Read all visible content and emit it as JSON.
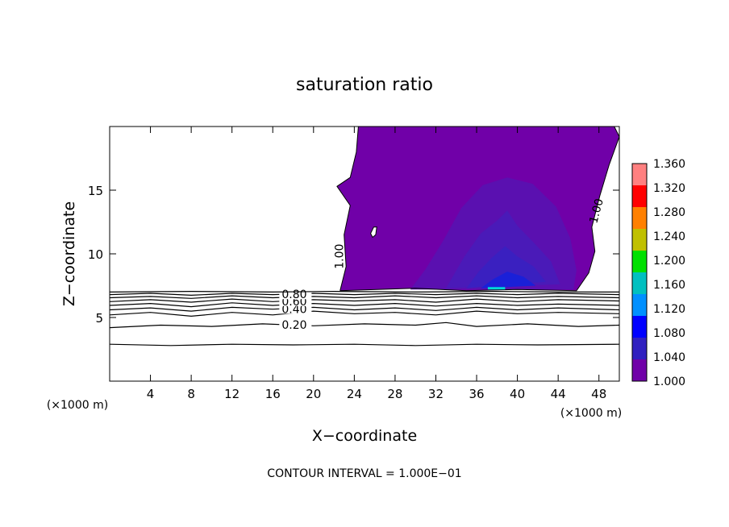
{
  "chart_data": {
    "type": "contour",
    "title": "saturation ratio",
    "xlabel": "X−coordinate",
    "ylabel": "Z−coordinate",
    "x_unit_left": "(×1000 m)",
    "x_unit_right": "(×1000 m)",
    "footer": "CONTOUR INTERVAL = 1.000E−01",
    "xlim": [
      0,
      50
    ],
    "ylim": [
      0,
      20
    ],
    "x_ticks": [
      {
        "value": 4,
        "label": "4"
      },
      {
        "value": 8,
        "label": "8"
      },
      {
        "value": 12,
        "label": "12"
      },
      {
        "value": 16,
        "label": "16"
      },
      {
        "value": 20,
        "label": "20"
      },
      {
        "value": 24,
        "label": "24"
      },
      {
        "value": 28,
        "label": "28"
      },
      {
        "value": 32,
        "label": "32"
      },
      {
        "value": 36,
        "label": "36"
      },
      {
        "value": 40,
        "label": "40"
      },
      {
        "value": 44,
        "label": "44"
      },
      {
        "value": 48,
        "label": "48"
      }
    ],
    "y_ticks": [
      {
        "value": 5,
        "label": "5"
      },
      {
        "value": 10,
        "label": "10"
      },
      {
        "value": 15,
        "label": "15"
      }
    ],
    "colorbar": {
      "min": 1.0,
      "max": 1.36,
      "ticks": [
        "1.360",
        "1.320",
        "1.280",
        "1.240",
        "1.200",
        "1.160",
        "1.120",
        "1.080",
        "1.040",
        "1.000"
      ],
      "colors": [
        "#ff8080",
        "#ff0000",
        "#ff8000",
        "#c0c000",
        "#00e000",
        "#00c0c0",
        "#0090ff",
        "#0000ff",
        "#3020c0",
        "#7000a8"
      ]
    },
    "contour_lines": [
      {
        "level": 0.1,
        "label": "",
        "points": [
          [
            0,
            2.9
          ],
          [
            6,
            2.8
          ],
          [
            12,
            2.9
          ],
          [
            18,
            2.85
          ],
          [
            24,
            2.9
          ],
          [
            30,
            2.8
          ],
          [
            36,
            2.9
          ],
          [
            42,
            2.85
          ],
          [
            50,
            2.9
          ]
        ]
      },
      {
        "level": 0.2,
        "label": "0.20",
        "points": [
          [
            0,
            4.2
          ],
          [
            5,
            4.4
          ],
          [
            10,
            4.3
          ],
          [
            15,
            4.5
          ],
          [
            20,
            4.35
          ],
          [
            25,
            4.5
          ],
          [
            30,
            4.4
          ],
          [
            33,
            4.6
          ],
          [
            36,
            4.3
          ],
          [
            41,
            4.5
          ],
          [
            46,
            4.3
          ],
          [
            50,
            4.4
          ]
        ]
      },
      {
        "level": 0.3,
        "label": "",
        "points": [
          [
            0,
            5.2
          ],
          [
            4,
            5.4
          ],
          [
            8,
            5.1
          ],
          [
            12,
            5.4
          ],
          [
            16,
            5.2
          ],
          [
            20,
            5.5
          ],
          [
            24,
            5.3
          ],
          [
            28,
            5.4
          ],
          [
            32,
            5.2
          ],
          [
            36,
            5.5
          ],
          [
            40,
            5.3
          ],
          [
            44,
            5.4
          ],
          [
            50,
            5.3
          ]
        ]
      },
      {
        "level": 0.4,
        "label": "0.40",
        "points": [
          [
            0,
            5.6
          ],
          [
            4,
            5.75
          ],
          [
            8,
            5.5
          ],
          [
            12,
            5.8
          ],
          [
            16,
            5.65
          ],
          [
            20,
            5.8
          ],
          [
            24,
            5.6
          ],
          [
            28,
            5.75
          ],
          [
            32,
            5.55
          ],
          [
            36,
            5.8
          ],
          [
            40,
            5.6
          ],
          [
            44,
            5.75
          ],
          [
            50,
            5.6
          ]
        ]
      },
      {
        "level": 0.5,
        "label": "",
        "points": [
          [
            0,
            5.95
          ],
          [
            4,
            6.1
          ],
          [
            8,
            5.85
          ],
          [
            12,
            6.15
          ],
          [
            16,
            5.95
          ],
          [
            20,
            6.1
          ],
          [
            24,
            5.95
          ],
          [
            28,
            6.1
          ],
          [
            32,
            5.9
          ],
          [
            36,
            6.1
          ],
          [
            40,
            5.95
          ],
          [
            44,
            6.05
          ],
          [
            50,
            5.95
          ]
        ]
      },
      {
        "level": 0.6,
        "label": "0.60",
        "points": [
          [
            0,
            6.25
          ],
          [
            4,
            6.4
          ],
          [
            8,
            6.2
          ],
          [
            12,
            6.45
          ],
          [
            16,
            6.25
          ],
          [
            20,
            6.4
          ],
          [
            24,
            6.3
          ],
          [
            28,
            6.4
          ],
          [
            32,
            6.2
          ],
          [
            36,
            6.45
          ],
          [
            40,
            6.25
          ],
          [
            44,
            6.4
          ],
          [
            50,
            6.3
          ]
        ]
      },
      {
        "level": 0.7,
        "label": "",
        "points": [
          [
            0,
            6.55
          ],
          [
            4,
            6.65
          ],
          [
            8,
            6.5
          ],
          [
            12,
            6.7
          ],
          [
            16,
            6.55
          ],
          [
            20,
            6.65
          ],
          [
            24,
            6.55
          ],
          [
            28,
            6.7
          ],
          [
            32,
            6.55
          ],
          [
            36,
            6.7
          ],
          [
            40,
            6.55
          ],
          [
            44,
            6.65
          ],
          [
            50,
            6.55
          ]
        ]
      },
      {
        "level": 0.8,
        "label": "0.80",
        "points": [
          [
            0,
            6.8
          ],
          [
            4,
            6.9
          ],
          [
            8,
            6.75
          ],
          [
            12,
            6.9
          ],
          [
            16,
            6.8
          ],
          [
            20,
            6.9
          ],
          [
            24,
            6.8
          ],
          [
            28,
            6.9
          ],
          [
            32,
            6.8
          ],
          [
            36,
            6.9
          ],
          [
            40,
            6.8
          ],
          [
            44,
            6.9
          ],
          [
            50,
            6.8
          ]
        ]
      },
      {
        "level": 0.9,
        "label": "",
        "points": [
          [
            0,
            7.0
          ],
          [
            8,
            7.05
          ],
          [
            16,
            7.0
          ],
          [
            22,
            7.05
          ],
          [
            30,
            7.0
          ],
          [
            38,
            7.05
          ],
          [
            44,
            7.0
          ],
          [
            50,
            7.0
          ]
        ]
      }
    ],
    "filled_regions": [
      {
        "level": 1.0,
        "color": "#7000a8",
        "points": [
          [
            22.6,
            7.1
          ],
          [
            23.2,
            9.0
          ],
          [
            23.0,
            11.5
          ],
          [
            23.6,
            13.8
          ],
          [
            22.3,
            15.3
          ],
          [
            23.6,
            16.0
          ],
          [
            24.2,
            18.0
          ],
          [
            24.4,
            20
          ],
          [
            49.5,
            20
          ],
          [
            50,
            19.2
          ],
          [
            49.0,
            17.0
          ],
          [
            48.1,
            14.6
          ],
          [
            47.3,
            12.1
          ],
          [
            47.6,
            10.2
          ],
          [
            47.0,
            8.5
          ],
          [
            45.8,
            7.1
          ],
          [
            40,
            7.2
          ],
          [
            35,
            7.1
          ],
          [
            30,
            7.3
          ],
          [
            22.6,
            7.1
          ]
        ]
      },
      {
        "level": 1.01,
        "color": "#5a10b0",
        "points": [
          [
            29.5,
            7.2
          ],
          [
            31,
            8.8
          ],
          [
            32.7,
            11.0
          ],
          [
            34.5,
            13.6
          ],
          [
            36.6,
            15.4
          ],
          [
            39.0,
            16.0
          ],
          [
            41.5,
            15.5
          ],
          [
            43.8,
            13.7
          ],
          [
            45.2,
            11.2
          ],
          [
            45.8,
            8.7
          ],
          [
            45.5,
            7.2
          ],
          [
            29.5,
            7.2
          ]
        ]
      },
      {
        "level": 1.02,
        "color": "#4a1ab8",
        "points": [
          [
            33.0,
            7.3
          ],
          [
            34.8,
            9.8
          ],
          [
            36.4,
            11.6
          ],
          [
            38.0,
            12.6
          ],
          [
            39.0,
            13.4
          ],
          [
            40.0,
            12.2
          ],
          [
            41.7,
            10.8
          ],
          [
            43.3,
            9.4
          ],
          [
            44.2,
            7.6
          ],
          [
            33.0,
            7.3
          ]
        ]
      },
      {
        "level": 1.03,
        "color": "#3a20c0",
        "points": [
          [
            35.0,
            7.3
          ],
          [
            36.2,
            8.6
          ],
          [
            37.5,
            9.7
          ],
          [
            38.8,
            10.6
          ],
          [
            40.0,
            9.8
          ],
          [
            41.6,
            9.0
          ],
          [
            42.8,
            7.8
          ],
          [
            35.0,
            7.3
          ]
        ]
      },
      {
        "level": 1.05,
        "color": "#1a20d8",
        "points": [
          [
            36.4,
            7.3
          ],
          [
            37.6,
            8.0
          ],
          [
            39.0,
            8.6
          ],
          [
            40.6,
            8.2
          ],
          [
            41.8,
            7.5
          ],
          [
            36.4,
            7.3
          ]
        ]
      }
    ],
    "hole": [
      [
        25.6,
        11.6
      ],
      [
        25.9,
        12.1
      ],
      [
        26.2,
        12.1
      ],
      [
        26.1,
        11.5
      ],
      [
        25.8,
        11.3
      ]
    ],
    "streak": {
      "color": "#00d8d8",
      "points": [
        [
          37.1,
          7.3
        ],
        [
          38.8,
          7.3
        ]
      ]
    },
    "inline_labels": [
      {
        "text": "1.00",
        "x": 22.9,
        "y": 9.8,
        "rotate": -90
      },
      {
        "text": "1.00",
        "x": 48.1,
        "y": 13.3,
        "rotate": -75
      }
    ]
  }
}
